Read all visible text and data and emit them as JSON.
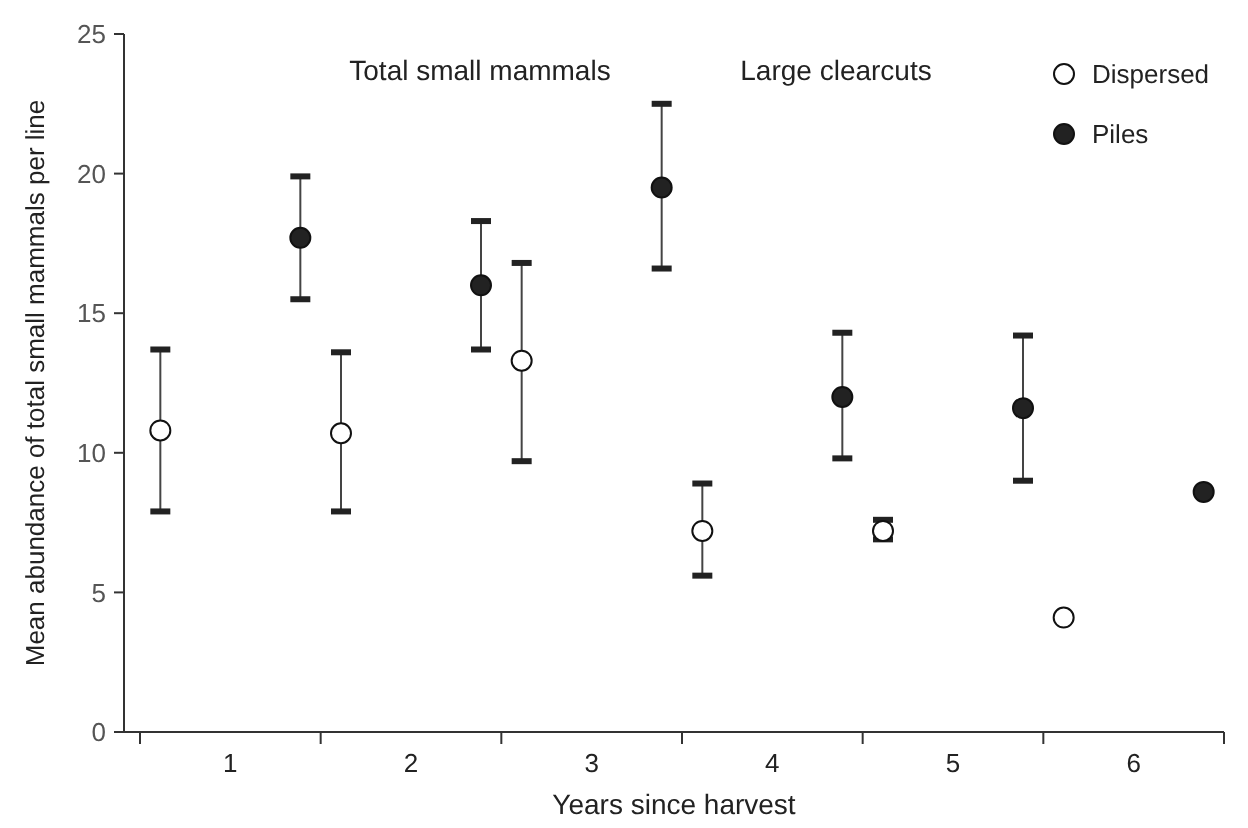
{
  "chart_data": {
    "type": "scatter",
    "xlabel": "Years since harvest",
    "ylabel": "Mean abundance of total small mammals per line",
    "annotations": [
      "Total small mammals",
      "Large clearcuts"
    ],
    "categories": [
      "1",
      "2",
      "3",
      "4",
      "5",
      "6"
    ],
    "ylim": [
      0,
      25
    ],
    "yticks": [
      0,
      5,
      10,
      15,
      20,
      25
    ],
    "grid": false,
    "legend": "top right",
    "marker": "circle",
    "series": [
      {
        "name": "Dispersed",
        "color": "#ffffff",
        "values": [
          10.8,
          10.7,
          13.3,
          7.2,
          7.2,
          4.1
        ],
        "errors": [
          [
            7.9,
            13.7
          ],
          [
            7.9,
            13.6
          ],
          [
            9.7,
            16.8
          ],
          [
            5.6,
            8.9
          ],
          [
            6.9,
            7.6
          ],
          null
        ]
      },
      {
        "name": "Piles",
        "color": "#222222",
        "values": [
          17.7,
          16.0,
          19.5,
          12.0,
          11.6,
          8.6
        ],
        "errors": [
          [
            15.5,
            19.9
          ],
          [
            13.7,
            18.3
          ],
          [
            16.6,
            22.5
          ],
          [
            9.8,
            14.3
          ],
          [
            9.0,
            14.2
          ],
          null
        ]
      }
    ]
  }
}
